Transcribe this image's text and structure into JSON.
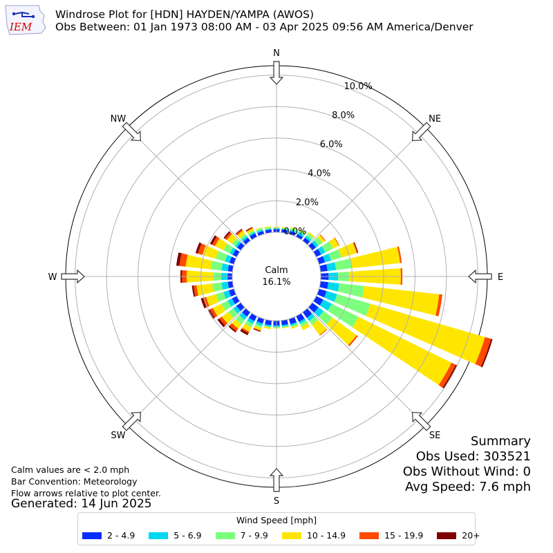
{
  "header": {
    "logo_text": "IEM",
    "title_line1": "Windrose Plot for [HDN] HAYDEN/YAMPA (AWOS)",
    "title_line2": "Obs Between: 01 Jan 1973 08:00 AM - 03 Apr 2025 09:56 AM America/Denver"
  },
  "calm": {
    "label": "Calm",
    "value": "16.1%"
  },
  "notes": {
    "calm_def": "Calm values are < 2.0 mph",
    "bar_convention": "Bar Convention: Meteorology",
    "flow": "Flow arrows relative to plot center.",
    "generated": "Generated: 14 Jun 2025"
  },
  "summary": {
    "title": "Summary",
    "obs_used": "Obs Used: 303521",
    "obs_without_wind": "Obs Without Wind: 0",
    "avg_speed": "Avg Speed: 7.6 mph"
  },
  "legend": {
    "title": "Wind Speed [mph]"
  },
  "chart_data": {
    "type": "windrose",
    "radial_tick_labels": [
      "0.0%",
      "2.0%",
      "4.0%",
      "6.0%",
      "8.0%",
      "10.0%"
    ],
    "radial_ticks": [
      0,
      2,
      4,
      6,
      8,
      10
    ],
    "rmax": 10.6,
    "calm_fraction_of_max": 0.21,
    "grid": true,
    "legend_placement": "bottom-center",
    "compass_labels": [
      "N",
      "NE",
      "E",
      "SE",
      "S",
      "SW",
      "W",
      "NW"
    ],
    "compass_angles_deg": [
      0,
      45,
      90,
      135,
      180,
      225,
      270,
      315
    ],
    "sector_width_deg": 10,
    "directions_deg": [
      0,
      10,
      20,
      30,
      40,
      50,
      60,
      70,
      80,
      90,
      100,
      110,
      120,
      130,
      140,
      150,
      160,
      170,
      180,
      190,
      200,
      210,
      220,
      230,
      240,
      250,
      260,
      270,
      280,
      290,
      300,
      310,
      320,
      330,
      340,
      350
    ],
    "bins": [
      {
        "name": "2 - 4.9",
        "color": "#0a2dff"
      },
      {
        "name": "5 - 6.9",
        "color": "#00d8f0"
      },
      {
        "name": "7 - 9.9",
        "color": "#7cff7c"
      },
      {
        "name": "10 - 14.9",
        "color": "#ffe600"
      },
      {
        "name": "15 - 19.9",
        "color": "#ff4a00"
      },
      {
        "name": "20+",
        "color": "#7f0000"
      }
    ],
    "cumulative": [
      [
        0.2,
        0.25,
        0.3,
        0.35,
        0.35,
        0.35
      ],
      [
        0.2,
        0.25,
        0.3,
        0.35,
        0.35,
        0.35
      ],
      [
        0.2,
        0.3,
        0.4,
        0.45,
        0.45,
        0.45
      ],
      [
        0.2,
        0.35,
        0.5,
        0.55,
        0.55,
        0.55
      ],
      [
        0.25,
        0.4,
        0.6,
        0.7,
        0.7,
        0.7
      ],
      [
        0.3,
        0.5,
        0.8,
        1.0,
        1.05,
        1.05
      ],
      [
        0.35,
        0.65,
        1.2,
        1.6,
        1.65,
        1.65
      ],
      [
        0.4,
        0.8,
        1.5,
        2.5,
        2.55,
        2.6
      ],
      [
        0.45,
        1.0,
        2.0,
        5.1,
        5.2,
        5.2
      ],
      [
        0.5,
        1.1,
        1.8,
        5.1,
        5.2,
        5.2
      ],
      [
        0.5,
        1.2,
        2.8,
        7.6,
        7.8,
        7.8
      ],
      [
        0.5,
        1.2,
        3.4,
        11.0,
        11.4,
        11.5
      ],
      [
        0.5,
        1.1,
        3.0,
        9.6,
        9.9,
        10.0
      ],
      [
        0.5,
        0.9,
        1.6,
        3.5,
        3.6,
        3.6
      ],
      [
        0.45,
        0.7,
        1.0,
        1.8,
        1.85,
        1.85
      ],
      [
        0.4,
        0.55,
        0.75,
        1.0,
        1.0,
        1.0
      ],
      [
        0.35,
        0.45,
        0.55,
        0.65,
        0.65,
        0.65
      ],
      [
        0.3,
        0.4,
        0.45,
        0.5,
        0.5,
        0.5
      ],
      [
        0.3,
        0.4,
        0.45,
        0.5,
        0.5,
        0.5
      ],
      [
        0.3,
        0.4,
        0.45,
        0.55,
        0.55,
        0.55
      ],
      [
        0.3,
        0.45,
        0.6,
        0.75,
        0.8,
        0.85
      ],
      [
        0.35,
        0.55,
        0.8,
        1.1,
        1.2,
        1.35
      ],
      [
        0.35,
        0.6,
        0.95,
        1.3,
        1.5,
        1.6
      ],
      [
        0.35,
        0.6,
        1.0,
        1.5,
        1.7,
        1.85
      ],
      [
        0.35,
        0.65,
        1.1,
        1.7,
        1.9,
        2.05
      ],
      [
        0.35,
        0.7,
        1.2,
        1.85,
        2.05,
        2.2
      ],
      [
        0.3,
        0.7,
        1.3,
        2.3,
        2.5,
        2.6
      ],
      [
        0.3,
        0.7,
        1.2,
        2.9,
        3.2,
        3.3
      ],
      [
        0.3,
        0.7,
        1.4,
        3.0,
        3.4,
        3.6
      ],
      [
        0.3,
        0.6,
        1.2,
        2.1,
        2.4,
        2.55
      ],
      [
        0.3,
        0.5,
        0.95,
        1.55,
        1.75,
        1.9
      ],
      [
        0.3,
        0.45,
        0.7,
        1.1,
        1.25,
        1.35
      ],
      [
        0.25,
        0.4,
        0.55,
        0.8,
        0.9,
        0.95
      ],
      [
        0.25,
        0.35,
        0.45,
        0.6,
        0.65,
        0.7
      ],
      [
        0.2,
        0.3,
        0.4,
        0.45,
        0.45,
        0.45
      ],
      [
        0.2,
        0.25,
        0.35,
        0.4,
        0.4,
        0.4
      ]
    ]
  }
}
